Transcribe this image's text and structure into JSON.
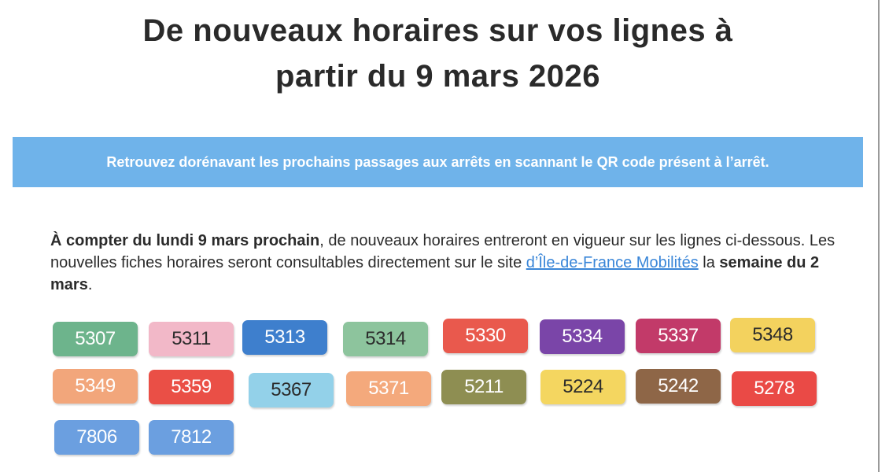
{
  "title": {
    "line1": "De nouveaux horaires sur vos lignes à",
    "line2": "partir du 9 mars 2026"
  },
  "banner": {
    "text": "Retrouvez dorénavant les prochains passages aux arrêts en scannant le QR code présent à l’arrêt."
  },
  "intro": {
    "bold_start": "À compter du lundi 9 mars prochain",
    "text1": ", de nouveaux horaires entreront en vigueur sur les lignes ci-dessous. Les nouvelles fiches horaires seront consultables directement sur le site ",
    "link": "d’Île-de-France Mobilités",
    "text2": " la ",
    "bold_end": "semaine du 2 mars",
    "text3": "."
  },
  "colors": {
    "banner": "#6fb3ea",
    "link": "#3a86d8"
  },
  "lines": [
    {
      "number": "5307",
      "bg": "#6db48c",
      "fg": "#ffffff"
    },
    {
      "number": "5311",
      "bg": "#f2b8c8",
      "fg": "#2b2b2b"
    },
    {
      "number": "5313",
      "bg": "#3e7fcd",
      "fg": "#ffffff"
    },
    {
      "number": "5314",
      "bg": "#8dc49d",
      "fg": "#2b2b2b"
    },
    {
      "number": "5330",
      "bg": "#e9594d",
      "fg": "#ffffff"
    },
    {
      "number": "5334",
      "bg": "#7a45a8",
      "fg": "#ffffff"
    },
    {
      "number": "5337",
      "bg": "#c23a69",
      "fg": "#ffffff"
    },
    {
      "number": "5348",
      "bg": "#f3d25e",
      "fg": "#2b2b2b"
    },
    {
      "number": "5349",
      "bg": "#f2a67b",
      "fg": "#ffffff"
    },
    {
      "number": "5359",
      "bg": "#ea4f46",
      "fg": "#ffffff"
    },
    {
      "number": "5367",
      "bg": "#93d1e9",
      "fg": "#2b2b2b"
    },
    {
      "number": "5371",
      "bg": "#f4a97c",
      "fg": "#ffffff"
    },
    {
      "number": "5211",
      "bg": "#8e8e52",
      "fg": "#ffffff"
    },
    {
      "number": "5224",
      "bg": "#f4d660",
      "fg": "#2b2b2b"
    },
    {
      "number": "5242",
      "bg": "#8e6647",
      "fg": "#ffffff"
    },
    {
      "number": "5278",
      "bg": "#ea4a46",
      "fg": "#ffffff"
    },
    {
      "number": "7806",
      "bg": "#6b9fe0",
      "fg": "#ffffff"
    },
    {
      "number": "7812",
      "bg": "#6b9fe0",
      "fg": "#ffffff"
    }
  ]
}
